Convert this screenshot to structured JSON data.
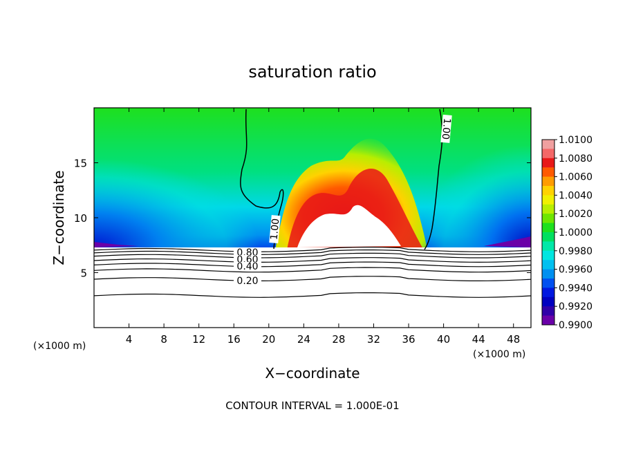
{
  "chart_data": {
    "type": "heatmap",
    "title": "saturation ratio",
    "xlabel": "X−coordinate",
    "ylabel": "Z−coordinate",
    "x_unit": "(×1000 m)",
    "z_unit": "(×1000 m)",
    "xlim": [
      0,
      50
    ],
    "ylim": [
      0,
      20
    ],
    "x_ticks": [
      4,
      8,
      12,
      16,
      20,
      24,
      28,
      32,
      36,
      40,
      44,
      48
    ],
    "x_tick_labels": [
      "4",
      "8",
      "12",
      "16",
      "20",
      "24",
      "28",
      "32",
      "36",
      "40",
      "44",
      "48"
    ],
    "y_ticks": [
      5,
      10,
      15
    ],
    "y_tick_labels": [
      "5",
      "10",
      "15"
    ],
    "colorbar": {
      "min": 0.99,
      "max": 1.01,
      "labels": [
        "1.0100",
        "1.0080",
        "1.0060",
        "1.0040",
        "1.0020",
        "1.0000",
        "0.9980",
        "0.9960",
        "0.9940",
        "0.9920",
        "0.9900"
      ],
      "colors": [
        "#f0a0a0",
        "#f46868",
        "#e81818",
        "#ff5a00",
        "#ff9c00",
        "#ffd200",
        "#f0f000",
        "#b8ee00",
        "#6ee600",
        "#1ee01e",
        "#00e060",
        "#00e8a8",
        "#00e6e0",
        "#00c0f0",
        "#0090f0",
        "#0050f0",
        "#0018e0",
        "#0000c0",
        "#3000a8",
        "#6a00a8"
      ]
    },
    "contour_labels": [
      "1.00",
      "1.00",
      "0.80",
      "0.60",
      "0.40",
      "0.20"
    ],
    "contour_interval_text": "CONTOUR INTERVAL = 1.000E-01",
    "grid": false
  }
}
